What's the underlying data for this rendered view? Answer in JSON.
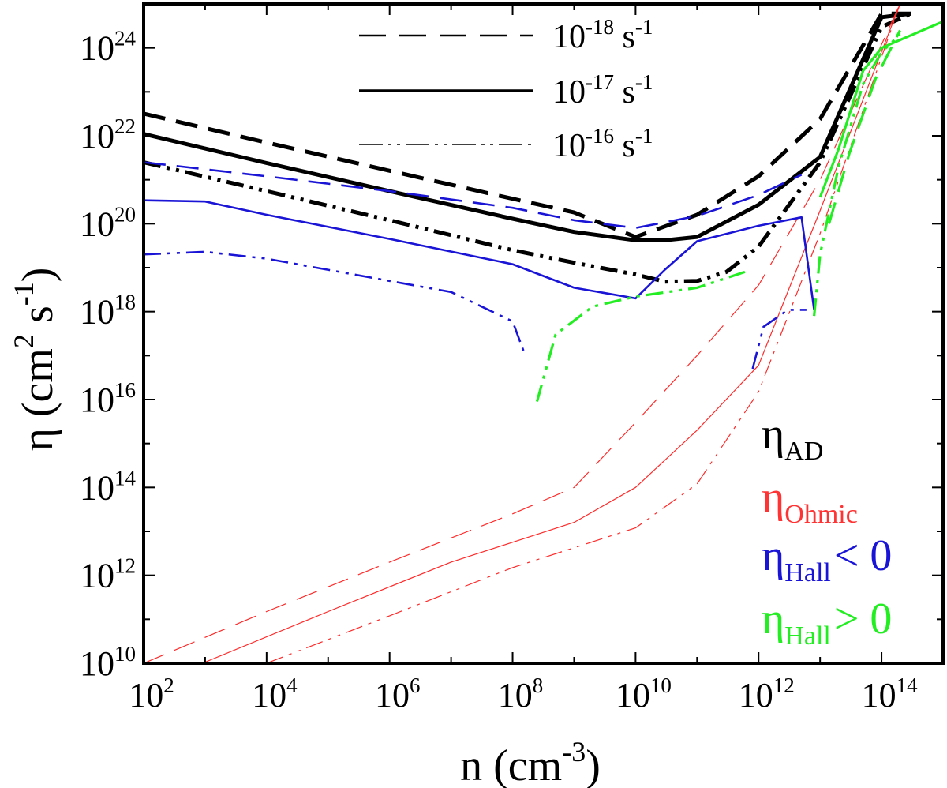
{
  "chart_data": {
    "type": "line",
    "xscale": "log",
    "yscale": "log",
    "xlim": [
      100,
      1000000000000000.0
    ],
    "ylim": [
      10000000000.0,
      1e+25
    ],
    "xlabel": {
      "main": "n (cm",
      "sup": "-3",
      "tail": ")"
    },
    "ylabel": {
      "main": "η (cm",
      "sup1": "2",
      "mid": " s",
      "sup2": "-1",
      "tail": ")"
    },
    "x_ticks": [
      {
        "value": 100,
        "base": "10",
        "exp": "2"
      },
      {
        "value": 10000,
        "base": "10",
        "exp": "4"
      },
      {
        "value": 1000000,
        "base": "10",
        "exp": "6"
      },
      {
        "value": 100000000,
        "base": "10",
        "exp": "8"
      },
      {
        "value": 10000000000,
        "base": "10",
        "exp": "10"
      },
      {
        "value": 1000000000000,
        "base": "10",
        "exp": "12"
      },
      {
        "value": 100000000000000,
        "base": "10",
        "exp": "14"
      }
    ],
    "y_ticks": [
      {
        "value": 10000000000.0,
        "base": "10",
        "exp": "10"
      },
      {
        "value": 1000000000000.0,
        "base": "10",
        "exp": "12"
      },
      {
        "value": 100000000000000.0,
        "base": "10",
        "exp": "14"
      },
      {
        "value": 1e+16,
        "base": "10",
        "exp": "16"
      },
      {
        "value": 1e+18,
        "base": "10",
        "exp": "18"
      },
      {
        "value": 1e+20,
        "base": "10",
        "exp": "20"
      },
      {
        "value": 1e+22,
        "base": "10",
        "exp": "22"
      },
      {
        "value": 1e+24,
        "base": "10",
        "exp": "24"
      }
    ],
    "legend": {
      "placement": "top",
      "entries": [
        {
          "base": "10",
          "exp": "-18",
          "unit": " s",
          "unit_exp": "-1",
          "dash": "dashed"
        },
        {
          "base": "10",
          "exp": "-17",
          "unit": " s",
          "unit_exp": "-1",
          "dash": "solid"
        },
        {
          "base": "10",
          "exp": "-16",
          "unit": " s",
          "unit_exp": "-1",
          "dash": "dashdotdot"
        }
      ]
    },
    "category_labels": [
      {
        "main": "η",
        "sub": "AD",
        "suffix": "",
        "color": "#000000"
      },
      {
        "main": "η",
        "sub": "Ohmic",
        "suffix": "",
        "color": "#ff3333"
      },
      {
        "main": "η",
        "sub": "Hall",
        "suffix": "< 0",
        "color": "#1a14d6"
      },
      {
        "main": "η",
        "sub": "Hall",
        "suffix": "> 0",
        "color": "#22ee22"
      }
    ],
    "colors": {
      "ad": "#000000",
      "ohmic": "#ff2a2a",
      "hall_neg": "#1a14d6",
      "hall_pos": "#22ee22"
    },
    "series": [
      {
        "kind": "ad",
        "zeta": "1e-18",
        "dash": "dashed",
        "points": [
          [
            100,
            3.2e+22
          ],
          [
            10000.0,
            7e+21
          ],
          [
            1000000.0,
            1.6e+21
          ],
          [
            100000000.0,
            3.7e+20
          ],
          [
            1000000000.0,
            1.8e+20
          ],
          [
            10000000000.0,
            5e+19
          ],
          [
            100000000000.0,
            1.6e+20
          ],
          [
            1000000000000.0,
            1.2e+21
          ],
          [
            10000000000000.0,
            2.4e+22
          ],
          [
            100000000000000.0,
            6e+24
          ],
          [
            300000000000000.0,
            6e+24
          ]
        ]
      },
      {
        "kind": "ad",
        "zeta": "1e-17",
        "dash": "solid",
        "points": [
          [
            100,
            1.1e+22
          ],
          [
            10000.0,
            2.4e+21
          ],
          [
            1000000.0,
            5.5e+20
          ],
          [
            100000000.0,
            1.3e+20
          ],
          [
            1000000000.0,
            6.5e+19
          ],
          [
            10000000000.0,
            4.2e+19
          ],
          [
            30000000000.0,
            4.2e+19
          ],
          [
            100000000000.0,
            5e+19
          ],
          [
            1000000000000.0,
            2.7e+20
          ],
          [
            10000000000000.0,
            3.3e+21
          ],
          [
            100000000000000.0,
            5e+24
          ],
          [
            300000000000000.0,
            6e+24
          ]
        ]
      },
      {
        "kind": "ad",
        "zeta": "1e-16",
        "dash": "dashdotdot",
        "points": [
          [
            100,
            2.5e+21
          ],
          [
            10000.0,
            5.5e+20
          ],
          [
            1000000.0,
            1.2e+20
          ],
          [
            100000000.0,
            2.5e+19
          ],
          [
            1000000000.0,
            1.3e+19
          ],
          [
            10000000000.0,
            7e+18
          ],
          [
            30000000000.0,
            4.8e+18
          ],
          [
            100000000000.0,
            5e+18
          ],
          [
            300000000000.0,
            8e+18
          ],
          [
            1000000000000.0,
            3e+19
          ],
          [
            10000000000000.0,
            2.5e+21
          ],
          [
            100000000000000.0,
            3e+24
          ],
          [
            300000000000000.0,
            6e+24
          ]
        ]
      },
      {
        "kind": "ohmic",
        "zeta": "1e-18",
        "dash": "dashed",
        "points": [
          [
            100,
            10000000000.0
          ],
          [
            10000.0,
            150000000000.0
          ],
          [
            1000000.0,
            2000000000000.0
          ],
          [
            100000000.0,
            25000000000000.0
          ],
          [
            1000000000.0,
            100000000000000.0
          ],
          [
            10000000000.0,
            3000000000000000.0
          ],
          [
            100000000000.0,
            1e+17
          ],
          [
            1000000000000.0,
            4e+18
          ],
          [
            10000000000000.0,
            1e+21
          ],
          [
            200000000000000.0,
            1e+25
          ]
        ]
      },
      {
        "kind": "ohmic",
        "zeta": "1e-17",
        "dash": "solid",
        "points": [
          [
            900,
            10000000000.0
          ],
          [
            100000.0,
            150000000000.0
          ],
          [
            10000000.0,
            2000000000000.0
          ],
          [
            1000000000.0,
            16000000000000.0
          ],
          [
            10000000000.0,
            100000000000000.0
          ],
          [
            100000000000.0,
            2000000000000000.0
          ],
          [
            1000000000000.0,
            6e+16
          ],
          [
            10000000000000.0,
            2e+20
          ],
          [
            200000000000000.0,
            1e+25
          ]
        ]
      },
      {
        "kind": "ohmic",
        "zeta": "1e-16",
        "dash": "dashdotdot",
        "points": [
          [
            10000.0,
            10000000000.0
          ],
          [
            1000000.0,
            120000000000.0
          ],
          [
            100000000.0,
            1500000000000.0
          ],
          [
            10000000000.0,
            12000000000000.0
          ],
          [
            100000000000.0,
            120000000000000.0
          ],
          [
            1000000000000.0,
            1.5e+16
          ],
          [
            10000000000000.0,
            6e+19
          ],
          [
            200000000000000.0,
            1e+25
          ]
        ]
      },
      {
        "kind": "hall_neg",
        "zeta": "1e-18",
        "dash": "dashed",
        "points": [
          [
            100,
            2.5e+21
          ],
          [
            10000.0,
            1.2e+21
          ],
          [
            1000000.0,
            5.5e+20
          ],
          [
            100000000.0,
            2.3e+20
          ],
          [
            1000000000.0,
            1.2e+20
          ],
          [
            10000000000.0,
            8e+19
          ],
          [
            100000000000.0,
            1.5e+20
          ],
          [
            1000000000000.0,
            4.5e+20
          ],
          [
            5000000000000.0,
            1.3e+21
          ]
        ]
      },
      {
        "kind": "hall_neg",
        "zeta": "1e-17",
        "dash": "solid",
        "points": [
          [
            100,
            3.4e+20
          ],
          [
            1000.0,
            3.2e+20
          ],
          [
            10000.0,
            1.6e+20
          ],
          [
            1000000.0,
            4.5e+19
          ],
          [
            100000000.0,
            1.2e+19
          ],
          [
            1000000000.0,
            3.5e+18
          ],
          [
            10000000000.0,
            2e+18
          ],
          [
            30000000000.0,
            9e+18
          ],
          [
            100000000000.0,
            4e+19
          ],
          [
            1000000000000.0,
            9e+19
          ],
          [
            5000000000000.0,
            1.4e+20
          ],
          [
            8000000000000.0,
            1.1e+18
          ]
        ]
      },
      {
        "kind": "hall_neg",
        "zeta": "1e-16",
        "dash": "dashdotdot",
        "points": [
          [
            100,
            2e+19
          ],
          [
            1000.0,
            2.3e+19
          ],
          [
            10000.0,
            1.6e+19
          ],
          [
            1000000.0,
            5e+18
          ],
          [
            10000000.0,
            2.8e+18
          ],
          [
            100000000.0,
            6e+17
          ],
          [
            150000000.0,
            1.3e+17
          ]
        ]
      },
      {
        "kind": "hall_neg",
        "zeta": "1e-16",
        "dash": "dashdotdot",
        "points": [
          [
            800000000000.0,
            5e+16
          ],
          [
            1200000000000.0,
            4.5e+17
          ],
          [
            3000000000000.0,
            1.1e+18
          ],
          [
            6000000000000.0,
            1.1e+18
          ]
        ]
      },
      {
        "kind": "hall_pos",
        "zeta": "1e-16",
        "dash": "dashdotdot",
        "points": [
          [
            250000000.0,
            9000000000000000.0
          ],
          [
            500000000.0,
            3e+17
          ],
          [
            2000000000.0,
            1.3e+18
          ],
          [
            10000000000.0,
            2.2e+18
          ],
          [
            100000000000.0,
            3.5e+18
          ],
          [
            600000000000.0,
            8e+18
          ]
        ]
      },
      {
        "kind": "hall_pos",
        "zeta": "1e-17",
        "dash": "solid",
        "points": [
          [
            10000000000000.0,
            4e+20
          ],
          [
            20000000000000.0,
            5e+21
          ],
          [
            50000000000000.0,
            3e+23
          ],
          [
            100000000000000.0,
            1e+24
          ],
          [
            1000000000000000.0,
            4e+24
          ]
        ]
      },
      {
        "kind": "hall_pos",
        "zeta": "1e-16",
        "dash": "dashdotdot",
        "points": [
          [
            8000000000000.0,
            8e+17
          ],
          [
            10000000000000.0,
            2e+19
          ],
          [
            20000000000000.0,
            2e+21
          ],
          [
            50000000000000.0,
            1.5e+23
          ],
          [
            100000000000000.0,
            8e+23
          ],
          [
            200000000000000.0,
            2e+24
          ]
        ]
      },
      {
        "kind": "hall_pos",
        "zeta": "1e-18",
        "dash": "dashed",
        "points": [
          [
            14000000000000.0,
            1e+20
          ],
          [
            30000000000000.0,
            4e+21
          ],
          [
            80000000000000.0,
            2e+23
          ],
          [
            200000000000000.0,
            2.5e+24
          ]
        ]
      }
    ]
  }
}
